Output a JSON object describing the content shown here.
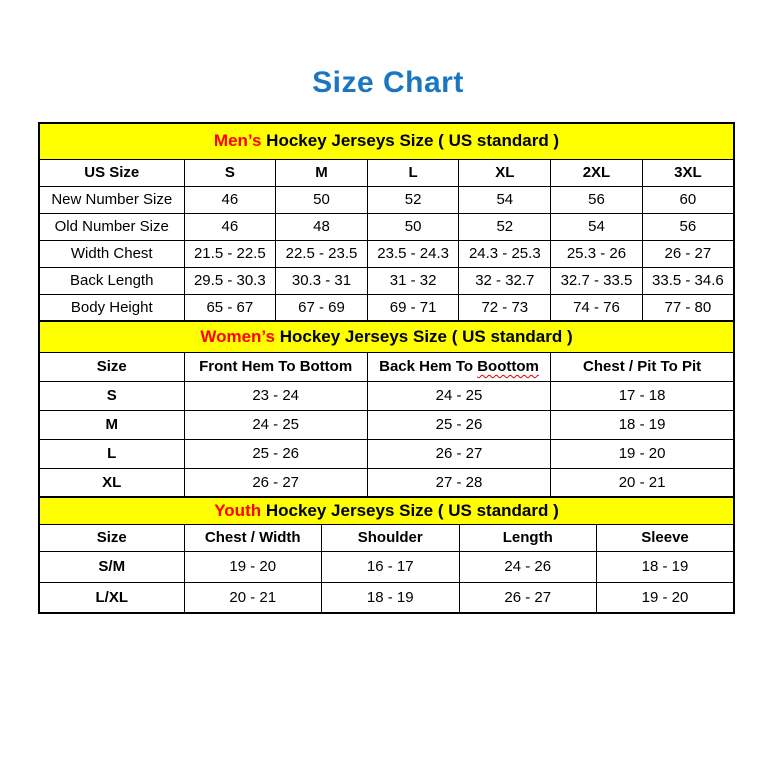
{
  "page_title": "Size Chart",
  "colors": {
    "title_blue": "#1B76C2",
    "banner_yellow": "#FFFF00",
    "highlight_red": "#FF0000",
    "border_black": "#000000",
    "squiggle_red": "#E00000"
  },
  "chart_data": [
    {
      "type": "table",
      "id": "mens",
      "banner_highlight": "Men’s",
      "banner_rest": " Hockey Jerseys Size ( US standard )",
      "columns": [
        "US Size",
        "S",
        "M",
        "L",
        "XL",
        "2XL",
        "3XL"
      ],
      "rows": [
        [
          "New Number Size",
          "46",
          "50",
          "52",
          "54",
          "56",
          "60"
        ],
        [
          "Old Number Size",
          "46",
          "48",
          "50",
          "52",
          "54",
          "56"
        ],
        [
          "Width Chest",
          "21.5 - 22.5",
          "22.5 - 23.5",
          "23.5 - 24.3",
          "24.3 - 25.3",
          "25.3 - 26",
          "26 - 27"
        ],
        [
          "Back Length",
          "29.5 - 30.3",
          "30.3 - 31",
          "31 - 32",
          "32 - 32.7",
          "32.7 - 33.5",
          "33.5 - 34.6"
        ],
        [
          "Body Height",
          "65 - 67",
          "67 - 69",
          "69 - 71",
          "72 - 73",
          "74 - 76",
          "77 - 80"
        ]
      ]
    },
    {
      "type": "table",
      "id": "womens",
      "banner_highlight": "Women’s",
      "banner_rest": " Hockey Jerseys Size ( US standard )",
      "columns": [
        "Size",
        "Front Hem To Bottom",
        "Back Hem To Boottom",
        "Chest / Pit To Pit"
      ],
      "squiggle": {
        "col": 2,
        "suffix": "Boottom"
      },
      "rows": [
        [
          "S",
          "23 - 24",
          "24 - 25",
          "17 - 18"
        ],
        [
          "M",
          "24 - 25",
          "25 - 26",
          "18 - 19"
        ],
        [
          "L",
          "25 - 26",
          "26 - 27",
          "19 - 20"
        ],
        [
          "XL",
          "26 - 27",
          "27 - 28",
          "20 - 21"
        ]
      ]
    },
    {
      "type": "table",
      "id": "youth",
      "banner_highlight": "Youth",
      "banner_rest": " Hockey Jerseys Size ( US standard )",
      "columns": [
        "Size",
        "Chest / Width",
        "Shoulder",
        "Length",
        "Sleeve"
      ],
      "rows": [
        [
          "S/M",
          "19 - 20",
          "16 - 17",
          "24 - 26",
          "18 - 19"
        ],
        [
          "L/XL",
          "20 - 21",
          "18 - 19",
          "26 - 27",
          "19 - 20"
        ]
      ]
    }
  ]
}
